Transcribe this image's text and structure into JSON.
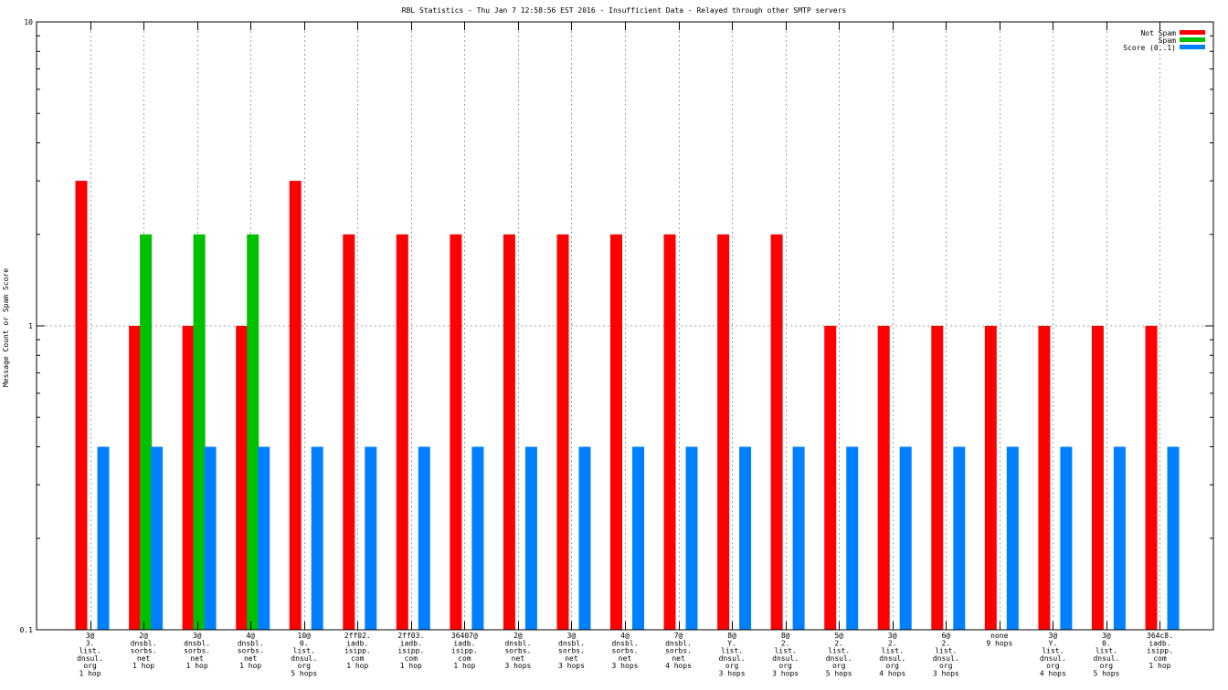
{
  "chart_data": {
    "type": "bar",
    "title": "RBL Statistics - Thu Jan  7 12:58:56 EST 2016 - Insufficient Data - Relayed through other SMTP servers",
    "ylabel": "Message Count or Spam Score",
    "xlabel": "",
    "yscale": "log",
    "ylim": [
      0.1,
      10
    ],
    "yticks": [
      "0.1",
      "1",
      "10"
    ],
    "grid": true,
    "legend_position": "top-right",
    "categories": [
      [
        "3@",
        "3.",
        "list.",
        "dnsul.",
        "org",
        "1 hop"
      ],
      [
        "2@",
        "dnsbl.",
        "sorbs.",
        "net",
        "1 hop"
      ],
      [
        "3@",
        "dnsbl.",
        "sorbs.",
        "net",
        "1 hop"
      ],
      [
        "4@",
        "dnsbl.",
        "sorbs.",
        "net",
        "1 hop"
      ],
      [
        "10@",
        "0.",
        "list.",
        "dnsul.",
        "org",
        "5 hops"
      ],
      [
        "2ff02.",
        "iadb.",
        "isipp.",
        "com",
        "1 hop"
      ],
      [
        "2ff03.",
        "iadb.",
        "isipp.",
        "com",
        "1 hop"
      ],
      [
        "36407@",
        "iadb.",
        "isipp.",
        "com",
        "1 hop"
      ],
      [
        "2@",
        "dnsbl.",
        "sorbs.",
        "net",
        "3 hops"
      ],
      [
        "3@",
        "dnsbl.",
        "sorbs.",
        "net",
        "3 hops"
      ],
      [
        "4@",
        "dnsbl.",
        "sorbs.",
        "net",
        "3 hops"
      ],
      [
        "7@",
        "dnsbl.",
        "sorbs.",
        "net",
        "4 hops"
      ],
      [
        "8@",
        "Y.",
        "list.",
        "dnsul.",
        "org",
        "3 hops"
      ],
      [
        "8@",
        "2.",
        "list.",
        "dnsul.",
        "org",
        "3 hops"
      ],
      [
        "5@",
        "2.",
        "list.",
        "dnsul.",
        "org",
        "5 hops"
      ],
      [
        "3@",
        "2.",
        "list.",
        "dnsul.",
        "org",
        "4 hops"
      ],
      [
        "6@",
        "2.",
        "list.",
        "dnsul.",
        "org",
        "3 hops"
      ],
      [
        "none",
        "9 hops"
      ],
      [
        "3@",
        "Y.",
        "list.",
        "dnsul.",
        "org",
        "4 hops"
      ],
      [
        "3@",
        "0.",
        "list.",
        "dnsul.",
        "org",
        "5 hops"
      ],
      [
        "364c8.",
        "iadb.",
        "isipp.",
        "com",
        "1 hop"
      ]
    ],
    "series": [
      {
        "name": "Not Spam",
        "color": "#ff0000",
        "values": [
          3,
          1,
          1,
          1,
          3,
          2,
          2,
          2,
          2,
          2,
          2,
          2,
          2,
          2,
          1,
          1,
          1,
          1,
          1,
          1,
          1
        ]
      },
      {
        "name": "Spam",
        "color": "#00c000",
        "values": [
          null,
          2,
          2,
          2,
          null,
          null,
          null,
          null,
          null,
          null,
          null,
          null,
          null,
          null,
          null,
          null,
          null,
          null,
          null,
          null,
          null
        ]
      },
      {
        "name": "Score (0..1)",
        "color": "#0080ff",
        "values": [
          0.4,
          0.4,
          0.4,
          0.4,
          0.4,
          0.4,
          0.4,
          0.4,
          0.4,
          0.4,
          0.4,
          0.4,
          0.4,
          0.4,
          0.4,
          0.4,
          0.4,
          0.4,
          0.4,
          0.4,
          0.4
        ]
      }
    ]
  }
}
